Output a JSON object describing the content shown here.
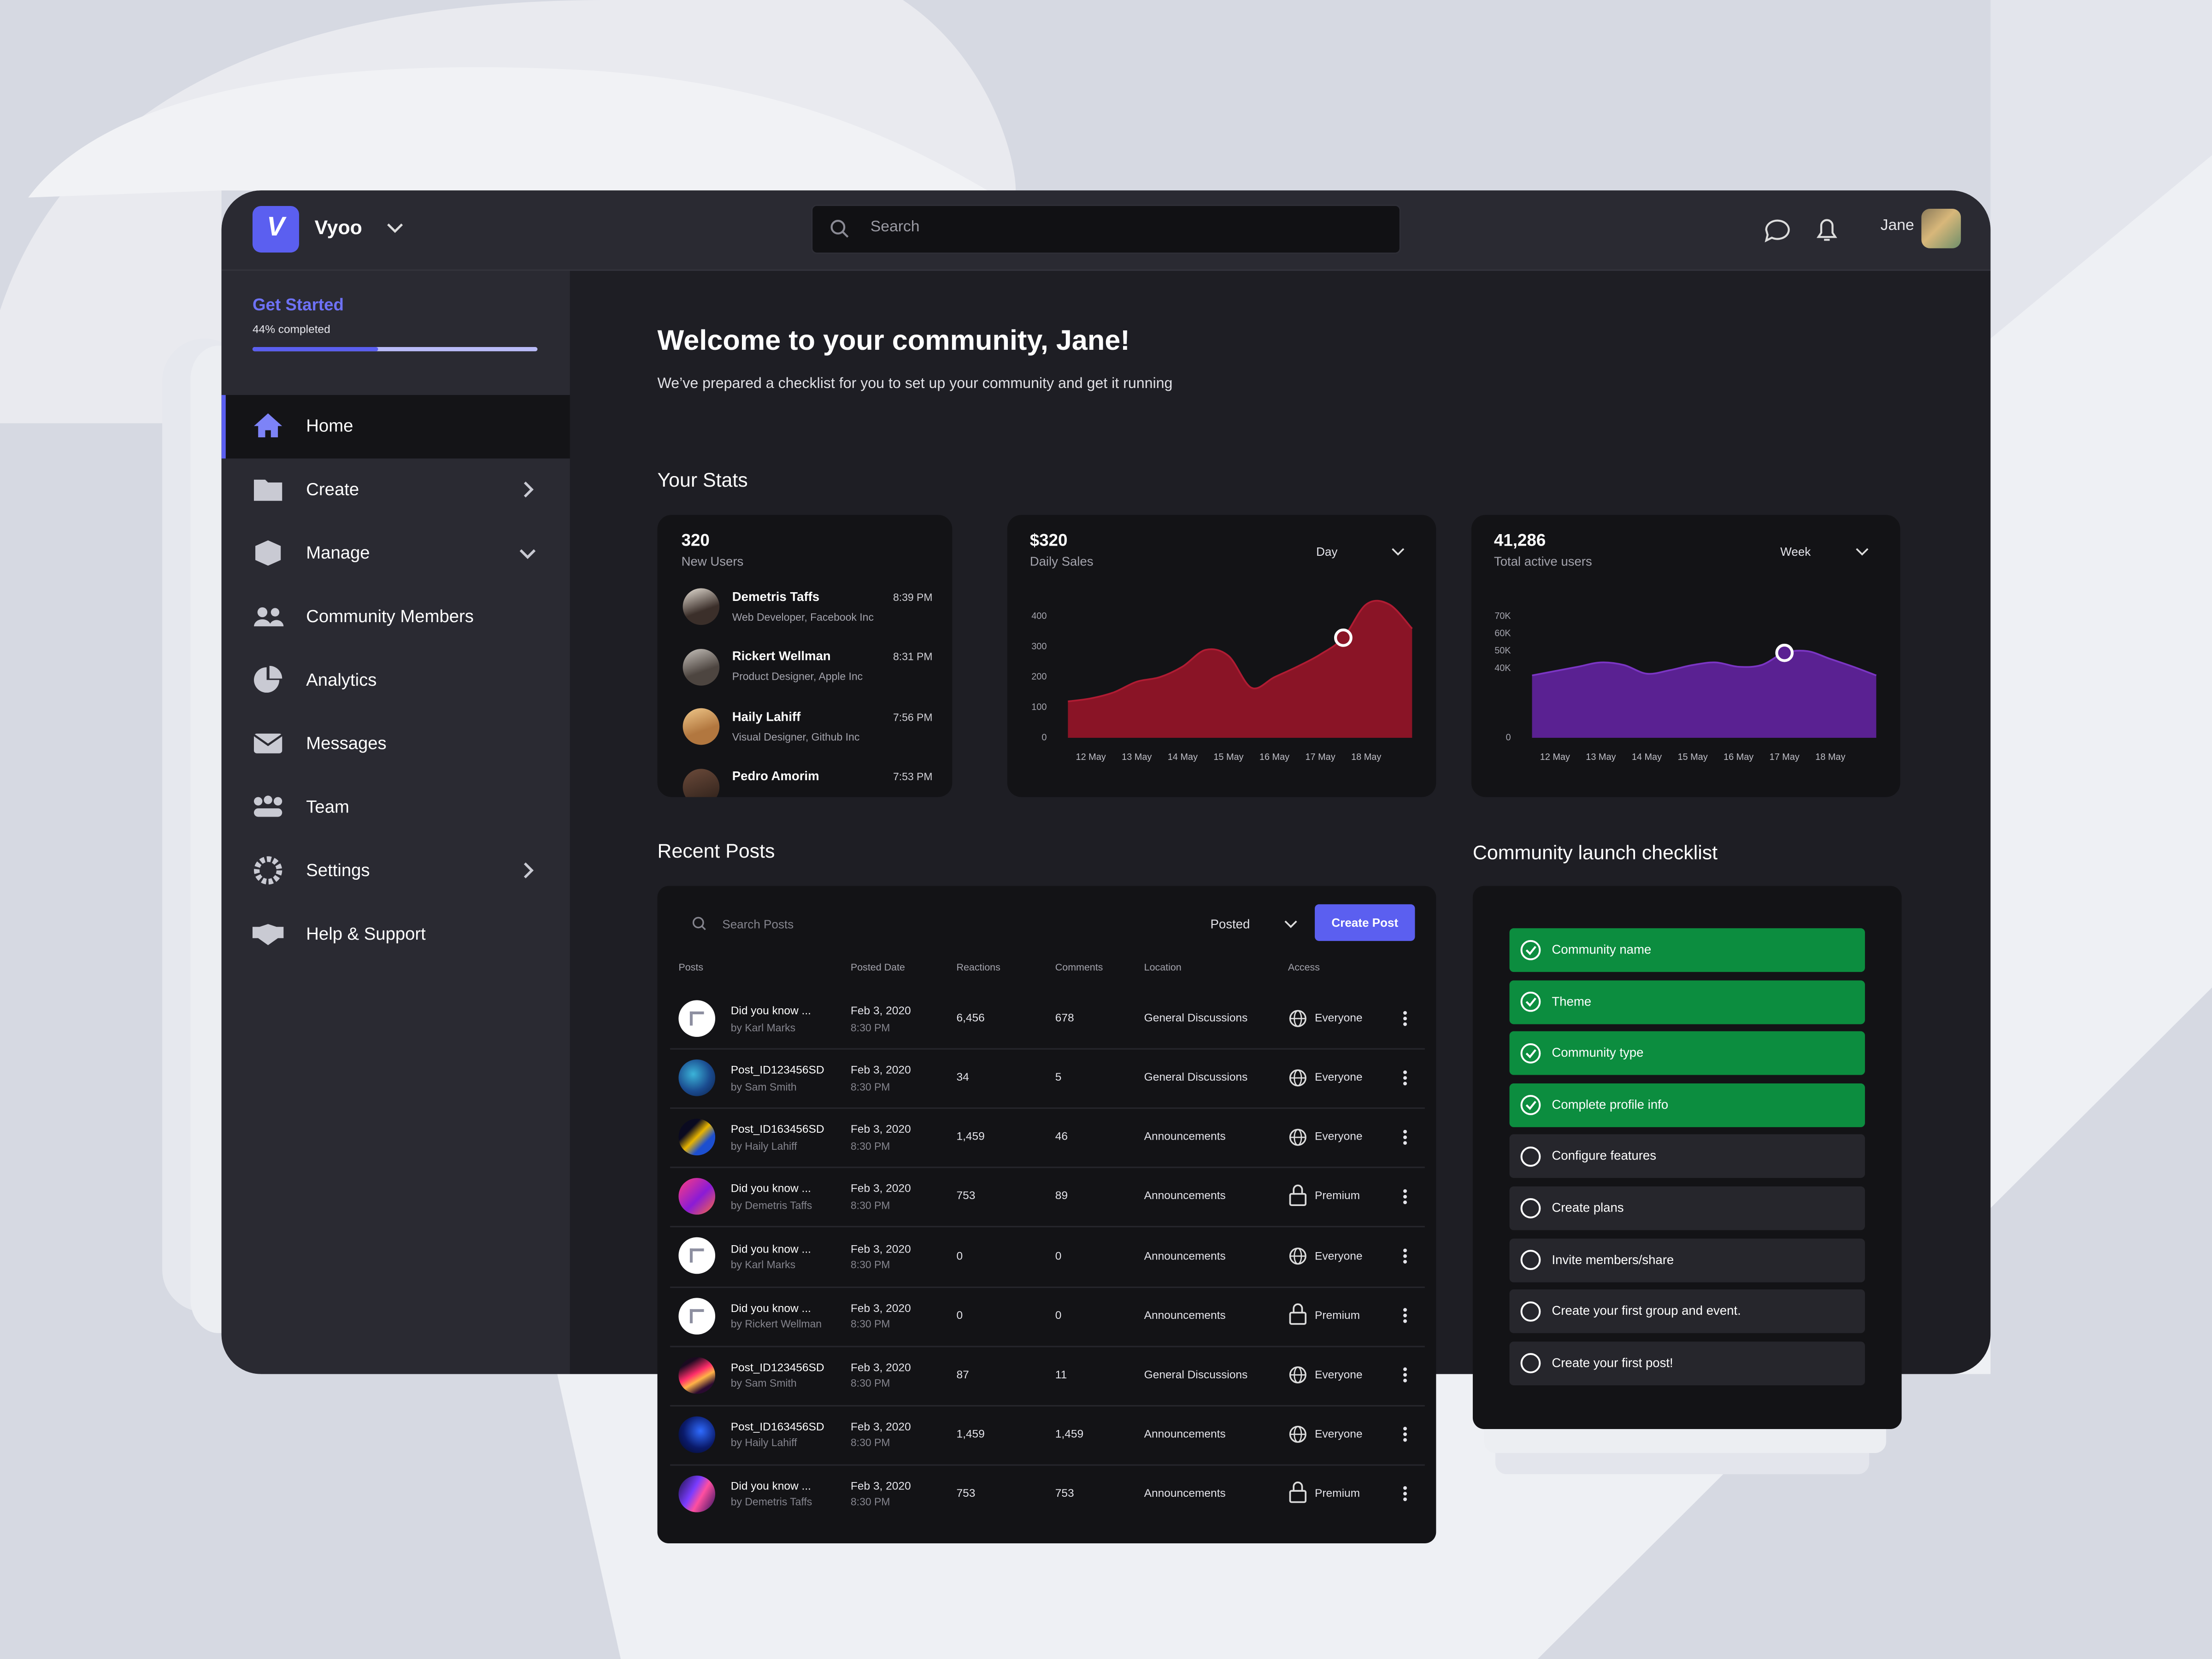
{
  "header": {
    "logo": "V",
    "brand": "Vyoo",
    "search_placeholder": "Search",
    "user": "Jane"
  },
  "sidebar": {
    "get_started": "Get Started",
    "progress": {
      "value": 44,
      "label": "44% completed"
    },
    "nav": [
      {
        "label": "Home",
        "active": true
      },
      {
        "label": "Create",
        "arrow": "right"
      },
      {
        "label": "Manage",
        "arrow": "down"
      },
      {
        "label": "Community Members"
      },
      {
        "label": "Analytics"
      },
      {
        "label": "Messages"
      },
      {
        "label": "Team"
      },
      {
        "label": "Settings",
        "arrow": "right"
      },
      {
        "label": "Help & Support"
      }
    ]
  },
  "welcome": {
    "title": "Welcome to your community, Jane!",
    "subtitle": "We’ve prepared a checklist for you to set up your community and get it running"
  },
  "stats": {
    "title": "Your Stats",
    "new_users": {
      "value": "320",
      "label": "New Users",
      "users": [
        {
          "name": "Demetris Taffs",
          "role": "Web Developer, Facebook Inc",
          "time": "8:39 PM"
        },
        {
          "name": "Rickert Wellman",
          "role": "Product Designer, Apple Inc",
          "time": "8:31 PM"
        },
        {
          "name": "Haily Lahiff",
          "role": "Visual Designer, Github Inc",
          "time": "7:56 PM"
        },
        {
          "name": "Pedro Amorim",
          "time": "7:53 PM"
        }
      ]
    },
    "daily_sales": {
      "value": "$320",
      "label": "Daily Sales",
      "period": "Day",
      "chart_data": {
        "type": "area",
        "x": [
          null,
          "12 May",
          null,
          "13 May",
          null,
          "14 May",
          null,
          "15 May",
          null,
          "16 May",
          null,
          "17 May",
          null,
          "18 May",
          null,
          null
        ],
        "values": [
          120,
          130,
          150,
          185,
          200,
          235,
          290,
          270,
          165,
          200,
          235,
          275,
          330,
          440,
          440,
          360
        ],
        "ylim": [
          0,
          400
        ],
        "yticks": [
          0,
          100,
          200,
          300,
          400
        ],
        "color": "#8a1426",
        "highlight": 12
      }
    },
    "active_users": {
      "value": "41,286",
      "label": "Total active users",
      "period": "Week",
      "chart_data": {
        "type": "area",
        "x": [
          null,
          "12 May",
          null,
          "13 May",
          null,
          "14 May",
          null,
          "15 May",
          null,
          "16 May",
          null,
          "17 May",
          null,
          "18 May",
          null,
          null
        ],
        "values": [
          36000,
          38500,
          41000,
          43500,
          42000,
          37000,
          39000,
          42000,
          43500,
          41000,
          42000,
          49000,
          50000,
          45500,
          41000,
          36000
        ],
        "ylim": [
          0,
          70000
        ],
        "yticks": [
          0,
          {
            "value": 40000,
            "label": "40K"
          },
          {
            "value": 50000,
            "label": "50K"
          },
          {
            "value": 60000,
            "label": "60K"
          },
          {
            "value": 70000,
            "label": "70K"
          }
        ],
        "color": "#5a2192",
        "highlight": 11
      }
    }
  },
  "posts": {
    "title": "Recent Posts",
    "search_placeholder": "Search Posts",
    "filter": "Posted",
    "button": "Create Post",
    "columns": [
      "Posts",
      "Posted Date",
      "Reactions",
      "Comments",
      "Location",
      "Access"
    ],
    "rows": [
      {
        "title": "Did you know ...",
        "author": "by Karl Marks",
        "date": "Feb 3, 2020",
        "time": "8:30 PM",
        "reactions": "6,456",
        "comments": "678",
        "location": "General Discussions",
        "access": "Everyone"
      },
      {
        "title": "Post_ID123456SD",
        "author": "by Sam Smith",
        "date": "Feb 3, 2020",
        "time": "8:30 PM",
        "reactions": "34",
        "comments": "5",
        "location": "General Discussions",
        "access": "Everyone"
      },
      {
        "title": "Post_ID163456SD",
        "author": "by Haily Lahiff",
        "date": "Feb 3, 2020",
        "time": "8:30 PM",
        "reactions": "1,459",
        "comments": "46",
        "location": "Announcements",
        "access": "Everyone"
      },
      {
        "title": "Did you know ...",
        "author": "by Demetris Taffs",
        "date": "Feb 3, 2020",
        "time": "8:30 PM",
        "reactions": "753",
        "comments": "89",
        "location": "Announcements",
        "access": "Premium"
      },
      {
        "title": "Did you know ...",
        "author": "by Karl Marks",
        "date": "Feb 3, 2020",
        "time": "8:30 PM",
        "reactions": "0",
        "comments": "0",
        "location": "Announcements",
        "access": "Everyone"
      },
      {
        "title": "Did you know ...",
        "author": "by Rickert Wellman",
        "date": "Feb 3, 2020",
        "time": "8:30 PM",
        "reactions": "0",
        "comments": "0",
        "location": "Announcements",
        "access": "Premium"
      },
      {
        "title": "Post_ID123456SD",
        "author": "by Sam Smith",
        "date": "Feb 3, 2020",
        "time": "8:30 PM",
        "reactions": "87",
        "comments": "11",
        "location": "General Discussions",
        "access": "Everyone"
      },
      {
        "title": "Post_ID163456SD",
        "author": "by Haily Lahiff",
        "date": "Feb 3, 2020",
        "time": "8:30 PM",
        "reactions": "1,459",
        "comments": "1,459",
        "location": "Announcements",
        "access": "Everyone"
      },
      {
        "title": "Did you know ...",
        "author": "by Demetris Taffs",
        "date": "Feb 3, 2020",
        "time": "8:30 PM",
        "reactions": "753",
        "comments": "753",
        "location": "Announcements",
        "access": "Premium"
      }
    ]
  },
  "checklist": {
    "title": "Community launch checklist",
    "items": [
      {
        "label": "Community name",
        "done": true
      },
      {
        "label": "Theme",
        "done": true
      },
      {
        "label": "Community type",
        "done": true
      },
      {
        "label": "Complete profile info",
        "done": true
      },
      {
        "label": "Configure features",
        "done": false
      },
      {
        "label": "Create plans",
        "done": false
      },
      {
        "label": "Invite members/share",
        "done": false
      },
      {
        "label": "Create your first group and event.",
        "done": false
      },
      {
        "label": "Create your first post!",
        "done": false
      }
    ]
  }
}
